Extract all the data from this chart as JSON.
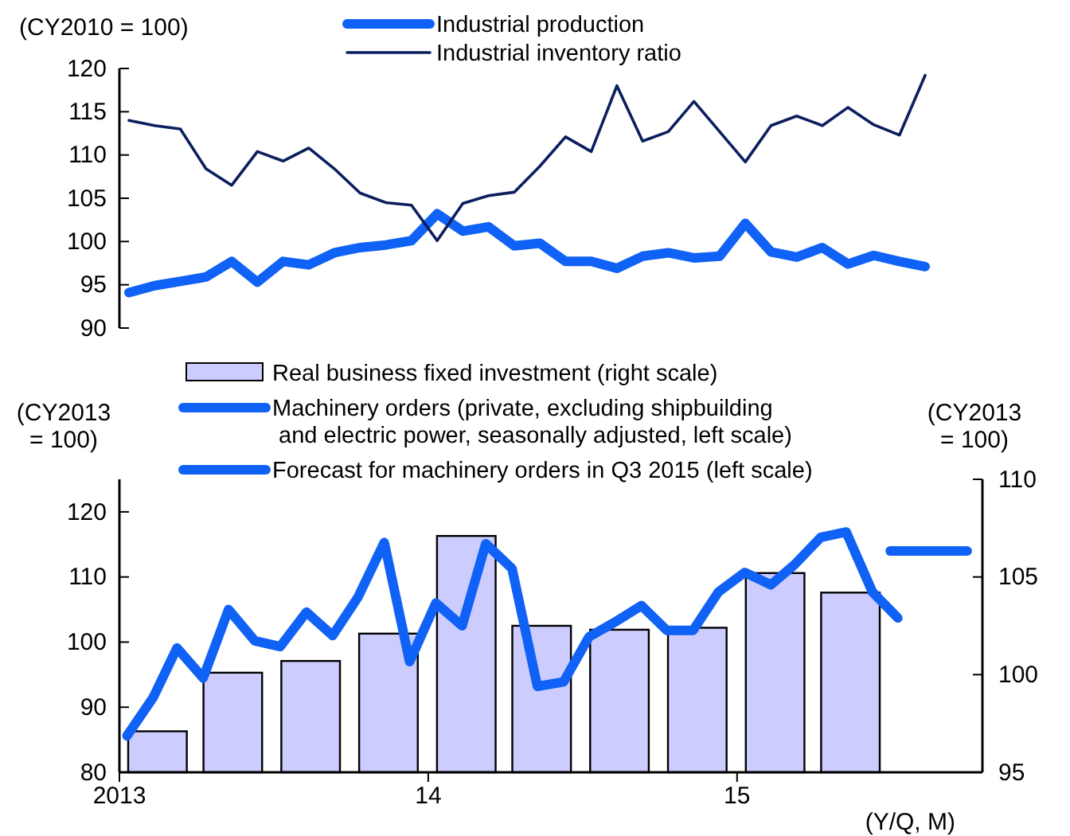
{
  "chart_data": [
    {
      "type": "line",
      "ylabel": "(CY2010 = 100)",
      "ylim": [
        90,
        120
      ],
      "yticks": [
        90,
        95,
        100,
        105,
        110,
        115,
        120
      ],
      "tick_labels": "y",
      "legend": "top",
      "grid": false,
      "categories": [
        null,
        null,
        null,
        null,
        null,
        null,
        null,
        null,
        null,
        null,
        null,
        null,
        null,
        null,
        null,
        null,
        null,
        null,
        null,
        null,
        null,
        null,
        null,
        null,
        null,
        null,
        null,
        null,
        null,
        null,
        null,
        null
      ],
      "series": [
        {
          "name": "Industrial production",
          "color": "#0f62f5",
          "values": [
            94.1,
            94.9,
            95.4,
            95.9,
            97.7,
            95.3,
            97.7,
            97.3,
            98.7,
            99.3,
            99.6,
            100.1,
            103.2,
            101.2,
            101.7,
            99.5,
            99.8,
            97.7,
            97.7,
            96.9,
            98.3,
            98.7,
            98.1,
            98.3,
            102.1,
            98.8,
            98.2,
            99.3,
            97.4,
            98.4,
            97.7,
            97.1
          ]
        },
        {
          "name": "Industrial inventory ratio",
          "color": "#0b1f5e",
          "values": [
            114.0,
            113.4,
            113.0,
            108.4,
            106.5,
            110.4,
            109.3,
            110.8,
            108.4,
            105.6,
            104.5,
            104.2,
            100.1,
            104.4,
            105.3,
            105.7,
            108.7,
            112.1,
            110.4,
            118.0,
            111.6,
            112.7,
            116.2,
            112.7,
            109.2,
            113.4,
            114.5,
            113.4,
            115.5,
            113.5,
            112.3,
            119.2
          ]
        }
      ]
    },
    {
      "type": "line",
      "ylabel": "(CY2013\n= 100)",
      "y2label": "(CY2013\n= 100)",
      "xlabel": "(Y/Q, M)",
      "xlim": [
        "2013-01-01",
        "2015-10-18"
      ],
      "xticks": [
        {
          "value": "2013-01-01",
          "label": "2013"
        },
        {
          "value": "2014-01-01",
          "label": "14"
        },
        {
          "value": "2015-01-01",
          "label": "15"
        }
      ],
      "ylim": [
        80,
        125
      ],
      "yticks": [
        80,
        90,
        100,
        110,
        120
      ],
      "y2lim": [
        95,
        110
      ],
      "y2ticks": [
        95,
        100,
        105,
        110
      ],
      "legend": "top",
      "grid": false,
      "series": [
        {
          "name": "Real business fixed investment (right scale)",
          "type": "bar",
          "axis": "y2",
          "color": "#ccccff",
          "x": [
            "2013-02-15",
            "2013-05-15",
            "2013-08-15",
            "2013-11-15",
            "2014-02-15",
            "2014-05-15",
            "2014-08-15",
            "2014-11-15",
            "2015-02-15",
            "2015-05-15"
          ],
          "values": [
            97.1,
            100.1,
            100.7,
            102.1,
            107.1,
            102.5,
            102.3,
            102.4,
            105.2,
            104.2
          ]
        },
        {
          "name": "Machinery orders (private, excluding shipbuilding\n and electric power, seasonally adjusted, left scale)",
          "color": "#0f62f5",
          "x": [
            "2013-01-10",
            "2013-02-10",
            "2013-03-10",
            "2013-04-10",
            "2013-05-10",
            "2013-06-10",
            "2013-07-10",
            "2013-08-10",
            "2013-09-10",
            "2013-10-10",
            "2013-11-10",
            "2013-12-10",
            "2014-01-10",
            "2014-02-10",
            "2014-03-10",
            "2014-04-10",
            "2014-05-10",
            "2014-06-10",
            "2014-07-10",
            "2014-08-10",
            "2014-09-10",
            "2014-10-10",
            "2014-11-10",
            "2014-12-10",
            "2015-01-10",
            "2015-02-10",
            "2015-03-10",
            "2015-04-10",
            "2015-05-10",
            "2015-06-10",
            "2015-07-10"
          ],
          "values": [
            85.6,
            91.5,
            99.1,
            94.5,
            105.0,
            100.2,
            99.3,
            104.6,
            101.0,
            106.9,
            115.3,
            97.0,
            106.0,
            102.5,
            115.1,
            111.3,
            93.2,
            93.9,
            100.8,
            103.1,
            105.6,
            101.8,
            101.8,
            107.7,
            110.7,
            108.8,
            111.9,
            116.1,
            116.9,
            107.7,
            103.7
          ]
        },
        {
          "name": "Forecast for machinery orders in Q3 2015 (left scale)",
          "color": "#0f62f5",
          "x": [
            "2015-07-01",
            "2015-09-30"
          ],
          "values": [
            114.0,
            114.0
          ]
        }
      ]
    }
  ]
}
